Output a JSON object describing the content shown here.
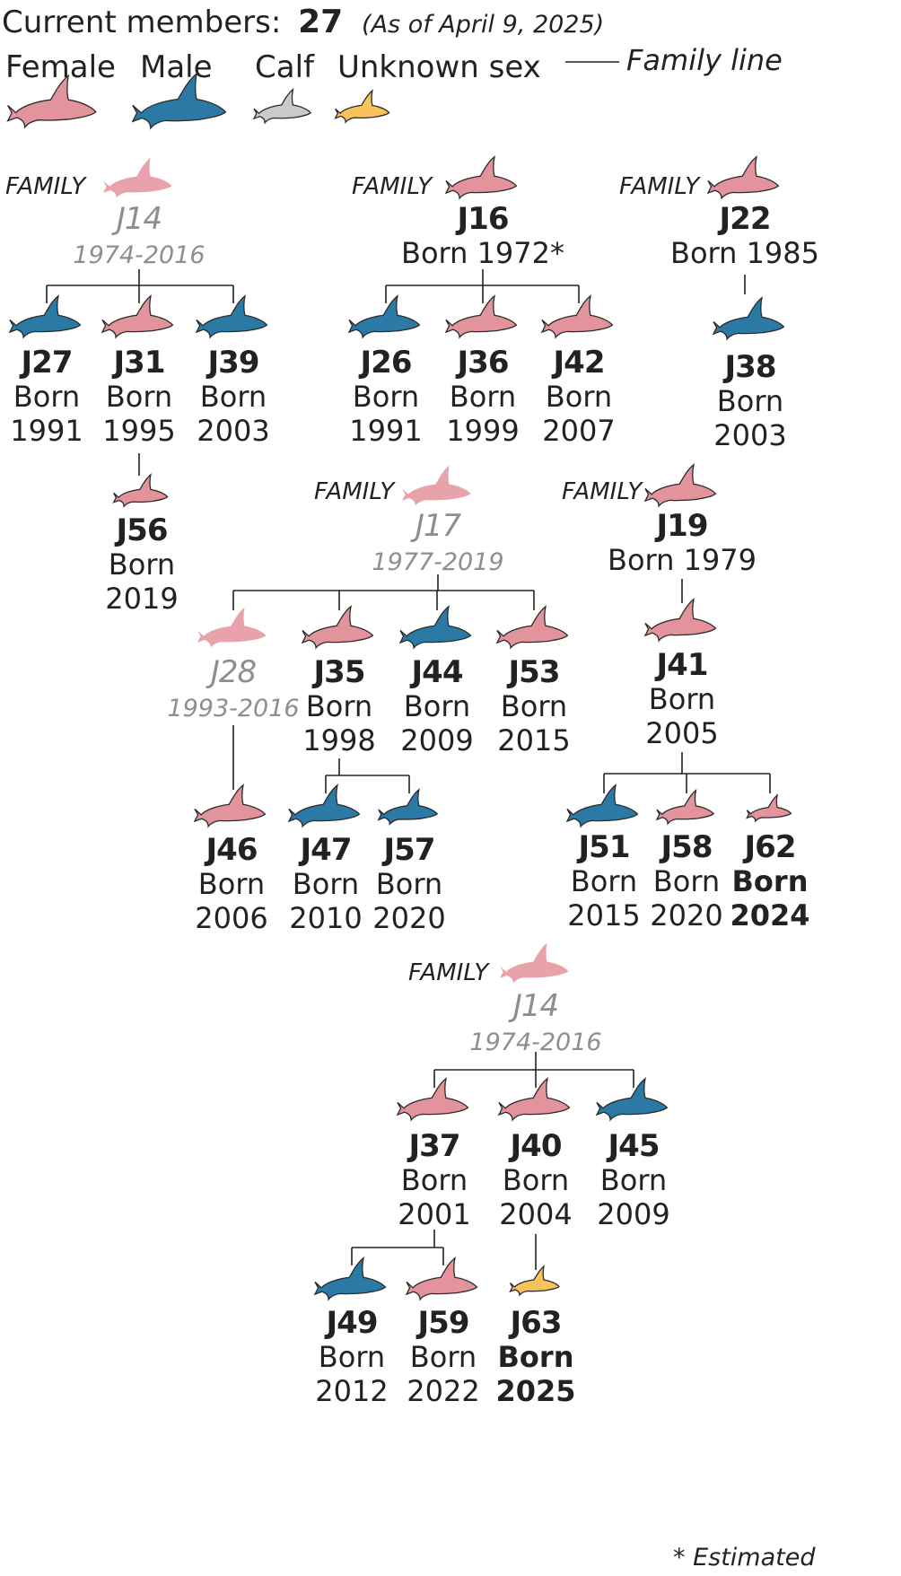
{
  "header": {
    "label": "Current members:",
    "count": "27",
    "as_of": "(As of April 9, 2025)"
  },
  "legend": {
    "female": "Female",
    "male": "Male",
    "calf": "Calf",
    "unknown": "Unknown sex",
    "family_line": "Family line"
  },
  "colors": {
    "female": "#e3939c",
    "male": "#2b7aa6",
    "calf": "#c9cacb",
    "unknown": "#f8c35a",
    "deceased": "#e8a2aa",
    "deceased_text": "#8e8e8e"
  },
  "icons": {
    "female": "female-orca-icon",
    "male": "male-orca-icon",
    "calf": "calf-orca-icon",
    "unknown": "unknown-sex-orca-icon"
  },
  "family_label": "FAMILY",
  "footnote": "* Estimated",
  "whales": {
    "J14": {
      "name": "J14",
      "line1": "1974-2016",
      "sex": "female",
      "deceased": true
    },
    "J16": {
      "name": "J16",
      "line1": "Born 1972*",
      "sex": "female"
    },
    "J22": {
      "name": "J22",
      "line1": "Born 1985",
      "sex": "female"
    },
    "J27": {
      "name": "J27",
      "line1": "Born",
      "line2": "1991",
      "sex": "male"
    },
    "J31": {
      "name": "J31",
      "line1": "Born",
      "line2": "1995",
      "sex": "female"
    },
    "J39": {
      "name": "J39",
      "line1": "Born",
      "line2": "2003",
      "sex": "male"
    },
    "J26": {
      "name": "J26",
      "line1": "Born",
      "line2": "1991",
      "sex": "male"
    },
    "J36": {
      "name": "J36",
      "line1": "Born",
      "line2": "1999",
      "sex": "female"
    },
    "J42": {
      "name": "J42",
      "line1": "Born",
      "line2": "2007",
      "sex": "female"
    },
    "J38": {
      "name": "J38",
      "line1": "Born",
      "line2": "2003",
      "sex": "male"
    },
    "J56": {
      "name": "J56",
      "line1": "Born",
      "line2": "2019",
      "sex": "female"
    },
    "J17": {
      "name": "J17",
      "line1": "1977-2019",
      "sex": "female",
      "deceased": true
    },
    "J19": {
      "name": "J19",
      "line1": "Born 1979",
      "sex": "female"
    },
    "J28": {
      "name": "J28",
      "line1": "1993-2016",
      "sex": "female",
      "deceased": true
    },
    "J35": {
      "name": "J35",
      "line1": "Born",
      "line2": "1998",
      "sex": "female"
    },
    "J44": {
      "name": "J44",
      "line1": "Born",
      "line2": "2009",
      "sex": "male"
    },
    "J53": {
      "name": "J53",
      "line1": "Born",
      "line2": "2015",
      "sex": "female"
    },
    "J41": {
      "name": "J41",
      "line1": "Born",
      "line2": "2005",
      "sex": "female"
    },
    "J46": {
      "name": "J46",
      "line1": "Born",
      "line2": "2006",
      "sex": "female"
    },
    "J47": {
      "name": "J47",
      "line1": "Born",
      "line2": "2010",
      "sex": "male"
    },
    "J57": {
      "name": "J57",
      "line1": "Born",
      "line2": "2020",
      "sex": "male"
    },
    "J51": {
      "name": "J51",
      "line1": "Born",
      "line2": "2015",
      "sex": "male"
    },
    "J58": {
      "name": "J58",
      "line1": "Born",
      "line2": "2020",
      "sex": "female"
    },
    "J62": {
      "name": "J62",
      "line1": "Born",
      "line2": "2024",
      "sex": "female",
      "new": true
    },
    "J14b": {
      "name": "J14",
      "line1": "1974-2016",
      "sex": "female",
      "deceased": true
    },
    "J37": {
      "name": "J37",
      "line1": "Born",
      "line2": "2001",
      "sex": "female"
    },
    "J40": {
      "name": "J40",
      "line1": "Born",
      "line2": "2004",
      "sex": "female"
    },
    "J45": {
      "name": "J45",
      "line1": "Born",
      "line2": "2009",
      "sex": "male"
    },
    "J49": {
      "name": "J49",
      "line1": "Born",
      "line2": "2012",
      "sex": "male"
    },
    "J59": {
      "name": "J59",
      "line1": "Born",
      "line2": "2022",
      "sex": "female"
    },
    "J63": {
      "name": "J63",
      "line1": "Born",
      "line2": "2025",
      "sex": "unknown",
      "new": true
    }
  }
}
